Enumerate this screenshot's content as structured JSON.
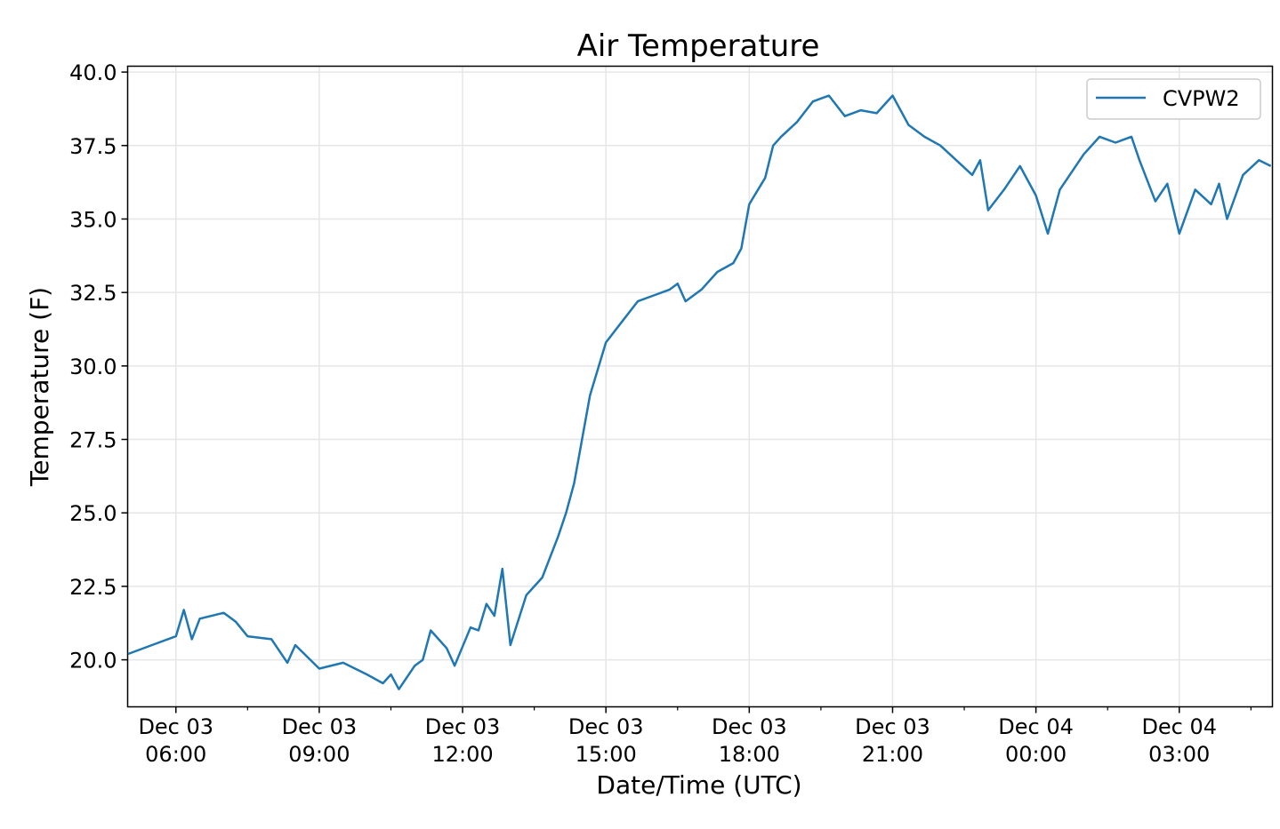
{
  "chart_data": {
    "type": "line",
    "title": "Air Temperature",
    "xlabel": "Date/Time (UTC)",
    "ylabel": "Temperature (F)",
    "ylim": [
      18.4,
      40.2
    ],
    "xlim_hours": [
      4.99,
      28.95
    ],
    "yticks": [
      "20.0",
      "22.5",
      "25.0",
      "27.5",
      "30.0",
      "32.5",
      "35.0",
      "37.5",
      "40.0"
    ],
    "xticks": [
      {
        "date": "Dec 03",
        "time": "06:00",
        "h": 6
      },
      {
        "date": "Dec 03",
        "time": "09:00",
        "h": 9
      },
      {
        "date": "Dec 03",
        "time": "12:00",
        "h": 12
      },
      {
        "date": "Dec 03",
        "time": "15:00",
        "h": 15
      },
      {
        "date": "Dec 03",
        "time": "18:00",
        "h": 18
      },
      {
        "date": "Dec 03",
        "time": "21:00",
        "h": 21
      },
      {
        "date": "Dec 04",
        "time": "00:00",
        "h": 24
      },
      {
        "date": "Dec 04",
        "time": "03:00",
        "h": 27
      }
    ],
    "grid": true,
    "legend_position": "top-right",
    "series": [
      {
        "name": "CVPW2",
        "color": "#1f77b4",
        "x": [
          "Dec 03 05:00",
          "Dec 03 05:30",
          "Dec 03 06:00",
          "Dec 03 06:10",
          "Dec 03 06:20",
          "Dec 03 06:30",
          "Dec 03 07:00",
          "Dec 03 07:15",
          "Dec 03 07:30",
          "Dec 03 08:00",
          "Dec 03 08:20",
          "Dec 03 08:30",
          "Dec 03 09:00",
          "Dec 03 09:30",
          "Dec 03 10:00",
          "Dec 03 10:20",
          "Dec 03 10:30",
          "Dec 03 10:40",
          "Dec 03 11:00",
          "Dec 03 11:10",
          "Dec 03 11:20",
          "Dec 03 11:40",
          "Dec 03 11:50",
          "Dec 03 12:10",
          "Dec 03 12:20",
          "Dec 03 12:30",
          "Dec 03 12:40",
          "Dec 03 12:50",
          "Dec 03 13:00",
          "Dec 03 13:20",
          "Dec 03 13:40",
          "Dec 03 14:00",
          "Dec 03 14:10",
          "Dec 03 14:20",
          "Dec 03 14:40",
          "Dec 03 15:00",
          "Dec 03 15:20",
          "Dec 03 15:40",
          "Dec 03 16:00",
          "Dec 03 16:20",
          "Dec 03 16:30",
          "Dec 03 16:40",
          "Dec 03 17:00",
          "Dec 03 17:20",
          "Dec 03 17:40",
          "Dec 03 17:50",
          "Dec 03 18:00",
          "Dec 03 18:20",
          "Dec 03 18:30",
          "Dec 03 18:40",
          "Dec 03 19:00",
          "Dec 03 19:20",
          "Dec 03 19:40",
          "Dec 03 20:00",
          "Dec 03 20:20",
          "Dec 03 20:40",
          "Dec 03 21:00",
          "Dec 03 21:20",
          "Dec 03 21:40",
          "Dec 03 22:00",
          "Dec 03 22:20",
          "Dec 03 22:40",
          "Dec 03 22:50",
          "Dec 03 23:00",
          "Dec 03 23:20",
          "Dec 03 23:40",
          "Dec 04 00:00",
          "Dec 04 00:15",
          "Dec 04 00:30",
          "Dec 04 01:00",
          "Dec 04 01:20",
          "Dec 04 01:40",
          "Dec 04 02:00",
          "Dec 04 02:10",
          "Dec 04 02:30",
          "Dec 04 02:45",
          "Dec 04 03:00",
          "Dec 04 03:20",
          "Dec 04 03:40",
          "Dec 04 03:50",
          "Dec 04 04:00",
          "Dec 04 04:20",
          "Dec 04 04:40",
          "Dec 04 04:55"
        ],
        "y": [
          20.2,
          20.5,
          20.8,
          21.7,
          20.7,
          21.4,
          21.6,
          21.3,
          20.8,
          20.7,
          19.9,
          20.5,
          19.7,
          19.9,
          19.5,
          19.2,
          19.5,
          19.0,
          19.8,
          20.0,
          21.0,
          20.4,
          19.8,
          21.1,
          21.0,
          21.9,
          21.5,
          23.1,
          20.5,
          22.2,
          22.8,
          24.2,
          25.0,
          26.0,
          29.0,
          30.8,
          31.5,
          32.2,
          32.4,
          32.6,
          32.8,
          32.2,
          32.6,
          33.2,
          33.5,
          34.0,
          35.5,
          36.4,
          37.5,
          37.8,
          38.3,
          39.0,
          39.2,
          38.5,
          38.7,
          38.6,
          39.2,
          38.2,
          37.8,
          37.5,
          37.0,
          36.5,
          37.0,
          35.3,
          36.0,
          36.8,
          35.8,
          34.5,
          36.0,
          37.2,
          37.8,
          37.6,
          37.8,
          37.0,
          35.6,
          36.2,
          34.5,
          36.0,
          35.5,
          36.2,
          35.0,
          36.5,
          37.0,
          36.8
        ]
      }
    ]
  }
}
